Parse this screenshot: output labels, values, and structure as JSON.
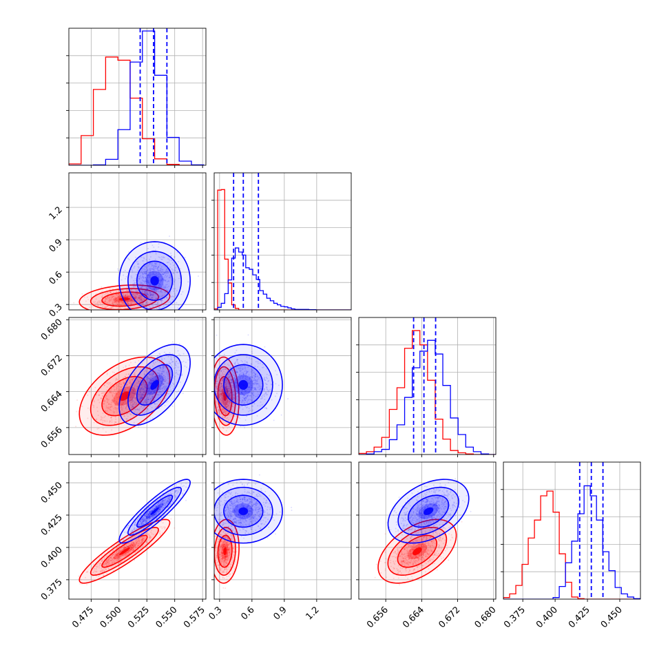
{
  "chart_data": {
    "type": "corner",
    "grid": true,
    "colors": {
      "series_a": "#ff0000",
      "series_b": "#0000ff",
      "quantile_lines": "#0000ff"
    },
    "series": [
      {
        "color": "#ff0000",
        "means": [
          0.505,
          0.35,
          0.663,
          0.397
        ],
        "stds": [
          0.014,
          0.045,
          0.003,
          0.0085
        ],
        "corr": {
          "0-1": 0.2,
          "0-2": 0.45,
          "0-3": 0.9,
          "1-2": -0.1,
          "1-3": 0.1,
          "2-3": 0.5
        }
      },
      {
        "color": "#0000ff",
        "means": [
          0.532,
          0.52,
          0.6655,
          0.428
        ],
        "stds": [
          0.011,
          0.125,
          0.0031,
          0.0085
        ],
        "corr": {
          "0-1": 0.0,
          "0-2": 0.55,
          "0-3": 0.9,
          "1-2": 0.0,
          "1-3": 0.0,
          "2-3": 0.4
        }
      }
    ],
    "quantile_lines": [
      [
        0.519,
        0.531,
        0.543
      ],
      [
        0.43,
        0.52,
        0.66
      ],
      [
        0.6622,
        0.6645,
        0.6671
      ],
      [
        0.419,
        0.428,
        0.437
      ]
    ],
    "histograms": [
      {
        "bin_edges": [
          0.455,
          0.466,
          0.477,
          0.488,
          0.499,
          0.51,
          0.521,
          0.532,
          0.543,
          0.554,
          0.565,
          0.576
        ],
        "red": [
          0.3,
          6.5,
          16.6,
          23.7,
          23.0,
          14.7,
          5.8,
          1.4,
          0.2,
          0.0,
          0.0
        ],
        "blue": [
          0.0,
          0.0,
          0.1,
          1.3,
          7.8,
          22.6,
          29.4,
          19.7,
          6.1,
          0.9,
          0.1
        ]
      },
      {
        "bin_edges": [
          0.25,
          0.2825,
          0.315,
          0.3475,
          0.38,
          0.4125,
          0.445,
          0.4775,
          0.51,
          0.5425,
          0.575,
          0.6075,
          0.64,
          0.6725,
          0.705,
          0.7375,
          0.77,
          0.8025,
          0.835,
          0.8675,
          0.9,
          0.9325,
          0.965,
          0.9975,
          1.03,
          1.0625,
          1.095,
          1.1275,
          1.16,
          1.1925,
          1.225,
          1.2575,
          1.29,
          1.3225,
          1.355,
          1.3875,
          1.42,
          1.4525,
          1.485,
          1.5175
        ],
        "red": [
          0.2,
          23.6,
          23.7,
          10.0,
          5.3,
          1.0,
          0.3,
          0,
          0,
          0,
          0,
          0,
          0,
          0,
          0,
          0,
          0,
          0,
          0,
          0,
          0,
          0,
          0,
          0,
          0,
          0,
          0,
          0,
          0,
          0,
          0,
          0,
          0,
          0,
          0,
          0,
          0,
          0,
          0
        ],
        "blue": [
          0.0,
          0.5,
          1.3,
          3.2,
          5.9,
          10.2,
          12.2,
          11.4,
          10.8,
          8.3,
          8.0,
          6.9,
          6.0,
          3.8,
          3.1,
          2.3,
          1.8,
          1.3,
          1.0,
          0.7,
          0.6,
          0.4,
          0.2,
          0.1,
          0.1,
          0.1,
          0.1,
          0.05,
          0.05,
          0,
          0,
          0,
          0,
          0,
          0,
          0,
          0,
          0,
          0
        ]
      },
      {
        "bin_edges": [
          0.65,
          0.6517,
          0.6534,
          0.6551,
          0.6568,
          0.6585,
          0.6602,
          0.6619,
          0.6636,
          0.6653,
          0.667,
          0.6687,
          0.6704,
          0.6721,
          0.6738,
          0.6755,
          0.6772,
          0.6789,
          0.6806
        ],
        "red": [
          0.2,
          0.5,
          1.3,
          3.0,
          7.9,
          11.7,
          18.6,
          21.7,
          19.2,
          13.0,
          6.2,
          2.7,
          0.7,
          0.3,
          0.1,
          0.0,
          0.0,
          0.0
        ],
        "blue": [
          0.0,
          0.1,
          0.5,
          0.9,
          2.6,
          5.2,
          10.0,
          15.2,
          18.1,
          20.0,
          17.6,
          12.1,
          6.4,
          3.5,
          1.3,
          0.5,
          0.1,
          0.0
        ]
      },
      {
        "bin_edges": [
          0.36,
          0.3648,
          0.3696,
          0.3744,
          0.3792,
          0.384,
          0.3888,
          0.3936,
          0.3984,
          0.4032,
          0.408,
          0.4128,
          0.4176,
          0.4224,
          0.4272,
          0.432,
          0.4368,
          0.4416,
          0.4464,
          0.4512,
          0.456,
          0.4608,
          0.4656
        ],
        "red": [
          0.3,
          1.0,
          2.6,
          6.6,
          11.6,
          15.0,
          19.6,
          20.5,
          16.5,
          8.6,
          3.2,
          0.4,
          0.1,
          0,
          0,
          0,
          0,
          0,
          0,
          0,
          0,
          0
        ],
        "blue": [
          0,
          0,
          0,
          0,
          0,
          0,
          0,
          0,
          0.3,
          2.4,
          6.9,
          11.0,
          16.2,
          21.5,
          19.6,
          15.0,
          9.0,
          5.4,
          2.2,
          1.0,
          0.4,
          0.1
        ]
      }
    ],
    "axes": [
      {
        "lim": [
          0.455,
          0.578
        ],
        "ticks": [
          "0.475",
          "0.500",
          "0.525",
          "0.550",
          "0.575"
        ]
      },
      {
        "lim": [
          0.25,
          1.52
        ],
        "ticks": [
          "0.3",
          "0.6",
          "0.9",
          "1.2"
        ]
      },
      {
        "lim": [
          0.65,
          0.6805
        ],
        "ticks": [
          "0.656",
          "0.664",
          "0.672",
          "0.680"
        ]
      },
      {
        "lim": [
          0.36,
          0.466
        ],
        "ticks": [
          "0.375",
          "0.400",
          "0.425",
          "0.450"
        ]
      }
    ],
    "hist_ylim": [
      [
        0,
        30
      ],
      [
        0,
        27
      ],
      [
        0,
        24
      ],
      [
        0,
        26
      ]
    ],
    "contour_levels_sigma": [
      0.5,
      1.0,
      1.5,
      2.0
    ],
    "contour_fill_alpha": [
      0.5,
      0.35,
      0.22,
      0.12
    ]
  }
}
